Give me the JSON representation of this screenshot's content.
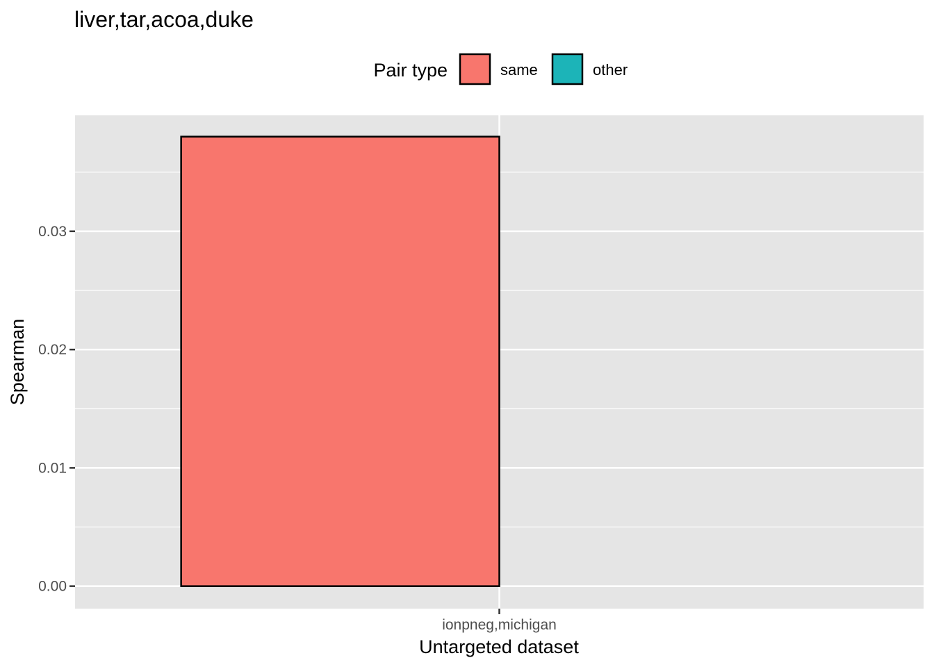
{
  "chart_data": {
    "type": "bar",
    "title": "liver,tar,acoa,duke",
    "xlabel": "Untargeted dataset",
    "ylabel": "Spearman",
    "categories": [
      "ionpneg,michigan"
    ],
    "series": [
      {
        "name": "same",
        "values": [
          0.038
        ],
        "color": "#F8766D"
      },
      {
        "name": "other",
        "values": [
          null
        ],
        "color": "#1CB4B8"
      }
    ],
    "ylim": [
      -0.0019,
      0.0398
    ],
    "yticks": [
      0.0,
      0.01,
      0.02,
      0.03
    ],
    "ytick_labels": [
      "0.00",
      "0.01",
      "0.02",
      "0.03"
    ],
    "legend": {
      "title": "Pair type",
      "position": "top",
      "entries": [
        "same",
        "other"
      ]
    },
    "grid": true,
    "panel_background": "#E5E5E5",
    "bar_outline": "#000000"
  }
}
